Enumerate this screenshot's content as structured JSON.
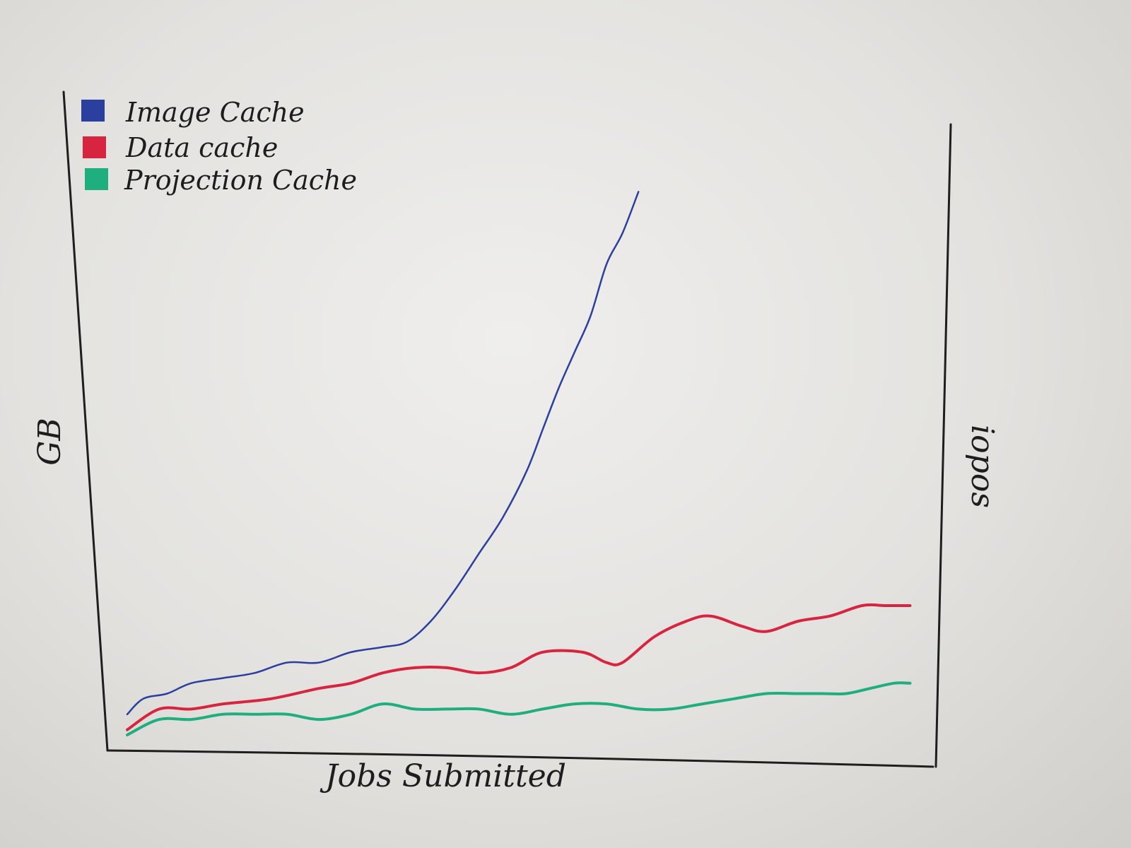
{
  "chart_data": {
    "type": "line",
    "title": "",
    "xlabel": "Jobs Submitted",
    "ylabel": "GB",
    "y2label": "iopos",
    "xlim": [
      0,
      100
    ],
    "ylim": [
      0,
      100
    ],
    "x_ticks_labeled": false,
    "y_ticks_labeled": false,
    "grid": false,
    "legend_position": "top-left",
    "series": [
      {
        "name": "Image Cache",
        "color": "#2a3f9e",
        "x": [
          0,
          2,
          5,
          8,
          12,
          16,
          20,
          24,
          28,
          32,
          35,
          38,
          41,
          44,
          47,
          50,
          52,
          54,
          56,
          58,
          60,
          62,
          64
        ],
        "y": [
          7,
          10,
          11,
          13,
          14,
          15,
          17,
          17,
          19,
          20,
          21,
          25,
          31,
          38,
          45,
          54,
          62,
          70,
          77,
          84,
          94,
          100,
          108
        ]
      },
      {
        "name": "Data cache",
        "color": "#d7243f",
        "x": [
          0,
          4,
          8,
          12,
          18,
          24,
          28,
          32,
          36,
          40,
          44,
          48,
          52,
          57,
          60,
          62,
          66,
          70,
          73,
          77,
          80,
          84,
          88,
          92,
          95,
          98
        ],
        "y": [
          4,
          8,
          8,
          9,
          10,
          12,
          13,
          15,
          16,
          16,
          15,
          16,
          19,
          19,
          17,
          17,
          22,
          25,
          26,
          24,
          23,
          25,
          26,
          28,
          28,
          28
        ]
      },
      {
        "name": "Projection Cache",
        "color": "#1fae7e",
        "x": [
          0,
          4,
          8,
          12,
          16,
          20,
          24,
          28,
          32,
          36,
          40,
          44,
          48,
          52,
          56,
          60,
          64,
          68,
          72,
          76,
          80,
          84,
          87,
          90,
          93,
          96,
          98
        ],
        "y": [
          3,
          6,
          6,
          7,
          7,
          7,
          6,
          7,
          9,
          8,
          8,
          8,
          7,
          8,
          9,
          9,
          8,
          8,
          9,
          10,
          11,
          11,
          11,
          11,
          12,
          13,
          13
        ]
      }
    ]
  }
}
